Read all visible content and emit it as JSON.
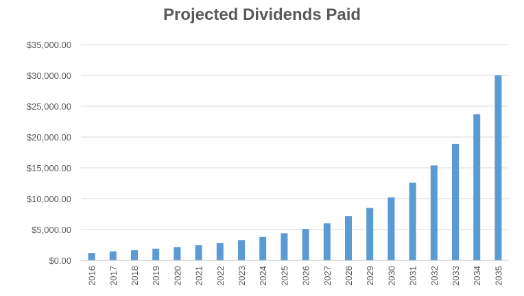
{
  "chart_data": {
    "type": "bar",
    "title": "Projected Dividends Paid",
    "xlabel": "",
    "ylabel": "",
    "categories": [
      "2016",
      "2017",
      "2018",
      "2019",
      "2020",
      "2021",
      "2022",
      "2023",
      "2024",
      "2025",
      "2026",
      "2027",
      "2028",
      "2029",
      "2030",
      "2031",
      "2032",
      "2033",
      "2034",
      "2035"
    ],
    "values": [
      1200,
      1450,
      1650,
      1900,
      2150,
      2450,
      2800,
      3300,
      3800,
      4400,
      5100,
      6000,
      7200,
      8500,
      10200,
      12600,
      15400,
      18900,
      23700,
      30000
    ],
    "ylim": [
      0,
      35000
    ],
    "yticks": [
      0,
      5000,
      10000,
      15000,
      20000,
      25000,
      30000,
      35000
    ],
    "ytick_labels": [
      "$0.00",
      "$5,000.00",
      "$10,000.00",
      "$15,000.00",
      "$20,000.00",
      "$25,000.00",
      "$30,000.00",
      "$35,000.00"
    ],
    "grid": true,
    "legend": "none",
    "bar_color": "#5b9bd5"
  }
}
